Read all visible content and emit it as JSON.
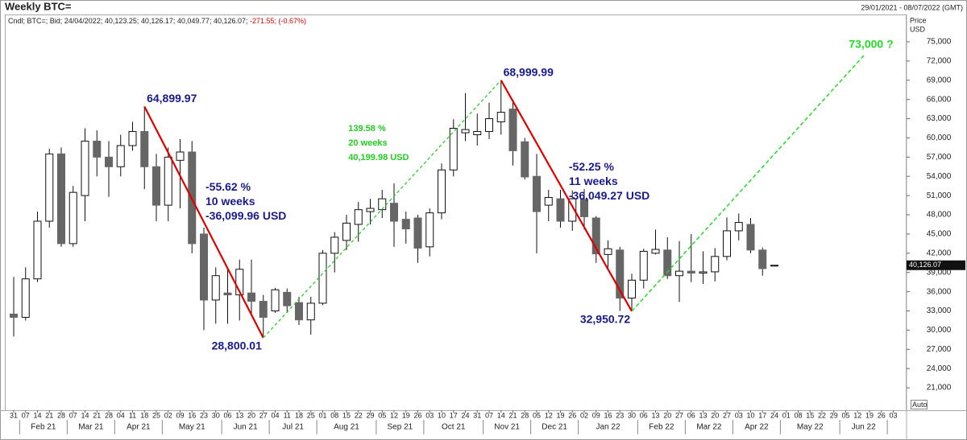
{
  "chart_data": {
    "type": "candlestick",
    "title": "Weekly BTC=",
    "date_range": "29/01/2021 - 08/07/2022 (GMT)",
    "legend_text": "Cndl; BTC=; Bid; 24/04/2022; 40,123.25; 40,126.17; 40,049.77; 40,126.07;",
    "legend_change": "-271.55; (-0.67%)",
    "axis_title": "Price",
    "axis_unit": "USD",
    "auto_button": "Auto",
    "categories": [
      "31",
      "07",
      "14",
      "21",
      "28",
      "07",
      "14",
      "21",
      "28",
      "04",
      "11",
      "18",
      "25",
      "02",
      "09",
      "16",
      "23",
      "30",
      "06",
      "13",
      "20",
      "27",
      "04",
      "11",
      "18",
      "25",
      "01",
      "08",
      "15",
      "22",
      "29",
      "05",
      "12",
      "19",
      "26",
      "03",
      "10",
      "17",
      "24",
      "31",
      "07",
      "14",
      "21",
      "28",
      "05",
      "12",
      "19",
      "26",
      "02",
      "09",
      "16",
      "23",
      "30",
      "06",
      "13",
      "20",
      "27",
      "06",
      "13",
      "20",
      "27",
      "03",
      "10",
      "17",
      "24",
      "01",
      "08",
      "15",
      "22",
      "29",
      "05",
      "12",
      "19",
      "26",
      "03"
    ],
    "months": [
      "Feb 21",
      "Mar 21",
      "Apr 21",
      "May 21",
      "Jun 21",
      "Jul 21",
      "Aug 21",
      "Sep 21",
      "Oct 21",
      "Nov 21",
      "Dec 21",
      "Jan 22",
      "Feb 22",
      "Mar 22",
      "Apr 22",
      "May 22",
      "Jun 22"
    ],
    "open": [
      32500,
      32000,
      38000,
      47000,
      57500,
      43500,
      51000,
      59500,
      57000,
      55500,
      58800,
      61000,
      55500,
      49500,
      56500,
      57800,
      45000,
      34700,
      35800,
      35500,
      35800,
      34500,
      33000,
      35900,
      34300,
      31600,
      34200,
      42000,
      44000,
      46500,
      48500,
      48800,
      49800,
      47300,
      47500,
      43000,
      48300,
      55000,
      60800,
      60500,
      61000,
      62500,
      64500,
      59400,
      54000,
      49500,
      50500,
      47000,
      50400,
      47500,
      41800,
      42500,
      35000,
      37800,
      42000,
      42500,
      38500,
      39200,
      38900,
      39100,
      41500,
      45500,
      46500,
      42500,
      40123.25,
      null,
      null,
      null,
      null,
      null,
      null,
      null,
      null,
      null,
      null
    ],
    "high": [
      38300,
      39800,
      48500,
      58300,
      58500,
      52500,
      61500,
      61200,
      59500,
      60500,
      62500,
      64899.97,
      57500,
      58500,
      59800,
      59500,
      46000,
      39800,
      39500,
      41000,
      41000,
      35500,
      36600,
      36500,
      35200,
      35200,
      42500,
      45300,
      48000,
      50000,
      50500,
      51900,
      52900,
      48500,
      48000,
      49000,
      56000,
      62900,
      67000,
      63800,
      65500,
      68999.99,
      66000,
      60000,
      57500,
      51900,
      51900,
      51800,
      52000,
      47800,
      44000,
      43000,
      38800,
      42700,
      45700,
      44500,
      43900,
      45000,
      42300,
      42800,
      47600,
      48200,
      47500,
      42900,
      40126.17,
      null,
      null,
      null,
      null,
      null,
      null,
      null,
      null,
      null,
      null
    ],
    "low": [
      29000,
      31500,
      37500,
      46000,
      43000,
      43000,
      47000,
      54000,
      50800,
      54000,
      58000,
      52000,
      47000,
      47000,
      49000,
      42000,
      30000,
      31000,
      31000,
      31500,
      32500,
      28800.01,
      32700,
      32700,
      30800,
      29300,
      33900,
      39000,
      42500,
      43800,
      46500,
      47500,
      43000,
      43500,
      40500,
      41500,
      47300,
      54000,
      59500,
      58800,
      59800,
      60500,
      55700,
      53500,
      42000,
      47000,
      46000,
      45500,
      45700,
      40500,
      39800,
      33000,
      32950.72,
      36500,
      41800,
      38000,
      34400,
      37500,
      37200,
      37600,
      40900,
      44000,
      42000,
      38500,
      40049.77,
      null,
      null,
      null,
      null,
      null,
      null,
      null,
      null,
      null,
      null
    ],
    "close": [
      32000,
      38000,
      47000,
      57500,
      43500,
      51500,
      59500,
      57000,
      55500,
      58800,
      61000,
      55500,
      49500,
      57000,
      57800,
      43500,
      34700,
      38500,
      35500,
      39500,
      34500,
      32000,
      36300,
      33800,
      31600,
      34200,
      42000,
      44500,
      46700,
      48800,
      49000,
      50500,
      47000,
      45800,
      42800,
      48300,
      55000,
      61500,
      61300,
      61000,
      63000,
      64000,
      58000,
      53900,
      48500,
      50700,
      47000,
      50500,
      47700,
      41900,
      42700,
      35000,
      37800,
      42300,
      42600,
      38500,
      39200,
      38900,
      39100,
      41500,
      45500,
      46800,
      42500,
      39600,
      40126.07,
      null,
      null,
      null,
      null,
      null,
      null,
      null,
      null,
      null,
      null
    ],
    "up_color": "#ffffff",
    "down_color": "#666666",
    "ylim": [
      18000,
      76500
    ],
    "yticks": [
      {
        "value": 21000,
        "label": "21,000"
      },
      {
        "value": 24000,
        "label": "24,000"
      },
      {
        "value": 27000,
        "label": "27,000"
      },
      {
        "value": 30000,
        "label": "30,000"
      },
      {
        "value": 33000,
        "label": "33,000"
      },
      {
        "value": 36000,
        "label": "36,000"
      },
      {
        "value": 39000,
        "label": "39,000"
      },
      {
        "value": 42000,
        "label": "42,000"
      },
      {
        "value": 45000,
        "label": "45,000"
      },
      {
        "value": 48000,
        "label": "48,000"
      },
      {
        "value": 51000,
        "label": "51,000"
      },
      {
        "value": 54000,
        "label": "54,000"
      },
      {
        "value": 57000,
        "label": "57,000"
      },
      {
        "value": 60000,
        "label": "60,000"
      },
      {
        "value": 63000,
        "label": "63,000"
      },
      {
        "value": 66000,
        "label": "66,000"
      },
      {
        "value": 69000,
        "label": "69,000"
      },
      {
        "value": 72000,
        "label": "72,000"
      },
      {
        "value": 75000,
        "label": "75,000"
      }
    ],
    "last_price": {
      "value": 40126.07,
      "label": "40,126.07"
    },
    "swings": [
      {
        "value": 64899.97,
        "label": "64,899.97"
      },
      {
        "value": 28800.01,
        "label": "28,800.01"
      },
      {
        "value": 68999.99,
        "label": "68,999.99"
      },
      {
        "value": 32950.72,
        "label": "32,950.72"
      }
    ],
    "swing_color": "#1a1a8c",
    "moves": [
      {
        "lines": [
          "-55.62 %",
          "10 weeks",
          "-36,099.96 USD"
        ],
        "color": "#1a1a8c",
        "line_color": "#e00000",
        "dashed": false
      },
      {
        "lines": [
          "139.58 %",
          "20 weeks",
          "40,199.98 USD"
        ],
        "color": "#22cc22",
        "line_color": "#22cc22",
        "dashed": true
      },
      {
        "lines": [
          "-52.25 %",
          "11 weeks",
          "-36,049.27 USD"
        ],
        "color": "#1a1a8c",
        "line_color": "#e00000",
        "dashed": false
      }
    ],
    "target": {
      "value": 73000,
      "label": "73,000 ?",
      "color": "#22dd22",
      "dashed": true
    }
  }
}
